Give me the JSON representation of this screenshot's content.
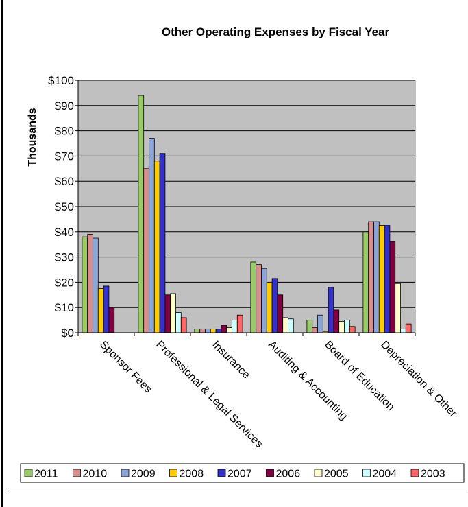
{
  "chart_data": {
    "type": "bar",
    "title": "Other Operating Expenses by Fiscal Year",
    "ylabel": "Thousands",
    "xlabel": "",
    "ylim": [
      0,
      100
    ],
    "yticks": [
      "$0",
      "$10",
      "$20",
      "$30",
      "$40",
      "$50",
      "$60",
      "$70",
      "$80",
      "$90",
      "$100"
    ],
    "grid": true,
    "legend_position": "bottom",
    "categories": [
      "Sponsor Fees",
      "Professional & Legal Services",
      "Insurance",
      "Auditing & Accounting",
      "Board of Education",
      "Depreciation & Other"
    ],
    "series": [
      {
        "name": "2011",
        "color": "#99CC66",
        "values": [
          38,
          94,
          1.5,
          28,
          5,
          40
        ]
      },
      {
        "name": "2010",
        "color": "#D98E8E",
        "values": [
          39,
          65,
          1.5,
          27,
          2,
          44
        ]
      },
      {
        "name": "2009",
        "color": "#8DA6D9",
        "values": [
          37.5,
          77,
          1.5,
          25.5,
          7,
          44
        ]
      },
      {
        "name": "2008",
        "color": "#FFCC00",
        "values": [
          17.5,
          68,
          1.5,
          20,
          0.5,
          42.5
        ]
      },
      {
        "name": "2007",
        "color": "#3333CC",
        "values": [
          18.5,
          71,
          1.5,
          21.5,
          18,
          42.5
        ]
      },
      {
        "name": "2006",
        "color": "#800040",
        "values": [
          10,
          15,
          3,
          15,
          9,
          36
        ]
      },
      {
        "name": "2005",
        "color": "#FFFFCC",
        "values": [
          0,
          15.5,
          2,
          6,
          4.5,
          19.5
        ]
      },
      {
        "name": "2004",
        "color": "#CCFFFF",
        "values": [
          0,
          8,
          5,
          5.5,
          5,
          1.5
        ]
      },
      {
        "name": "2003",
        "color": "#FF6666",
        "values": [
          0,
          6,
          7,
          0,
          2.5,
          3.5
        ]
      }
    ]
  }
}
